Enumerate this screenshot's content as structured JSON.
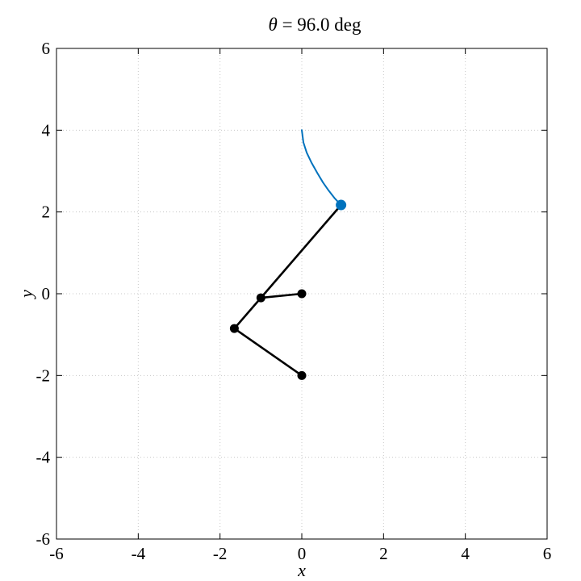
{
  "chart_data": {
    "type": "line",
    "title_symbol": "θ",
    "title_rest": " = 96.0 deg",
    "xlabel": "x",
    "ylabel": "y",
    "xlim": [
      -6,
      6
    ],
    "ylim": [
      -6,
      6
    ],
    "xticks": [
      -6,
      -4,
      -2,
      0,
      2,
      4,
      6
    ],
    "yticks": [
      -6,
      -4,
      -2,
      0,
      2,
      4,
      6
    ],
    "grid": true,
    "colors": {
      "linkage": "#000000",
      "trace": "#0072BD",
      "grid": "#c8c8c8"
    },
    "series": [
      {
        "role": "trace",
        "points": [
          [
            0.0,
            4.0
          ],
          [
            0.04,
            3.7
          ],
          [
            0.12,
            3.45
          ],
          [
            0.24,
            3.2
          ],
          [
            0.38,
            2.95
          ],
          [
            0.52,
            2.72
          ],
          [
            0.66,
            2.52
          ],
          [
            0.8,
            2.34
          ],
          [
            0.96,
            2.17
          ]
        ]
      },
      {
        "role": "linkage",
        "points": [
          [
            0.0,
            0.0
          ],
          [
            -1.0,
            -0.1
          ],
          [
            -1.65,
            -0.85
          ],
          [
            0.0,
            -2.0
          ]
        ]
      },
      {
        "role": "linkage",
        "points": [
          [
            -1.0,
            -0.1
          ],
          [
            0.96,
            2.17
          ]
        ]
      }
    ],
    "joints": [
      [
        0.0,
        0.0
      ],
      [
        -1.0,
        -0.1
      ],
      [
        -1.65,
        -0.85
      ],
      [
        0.0,
        -2.0
      ]
    ],
    "end_point": [
      0.96,
      2.17
    ]
  }
}
